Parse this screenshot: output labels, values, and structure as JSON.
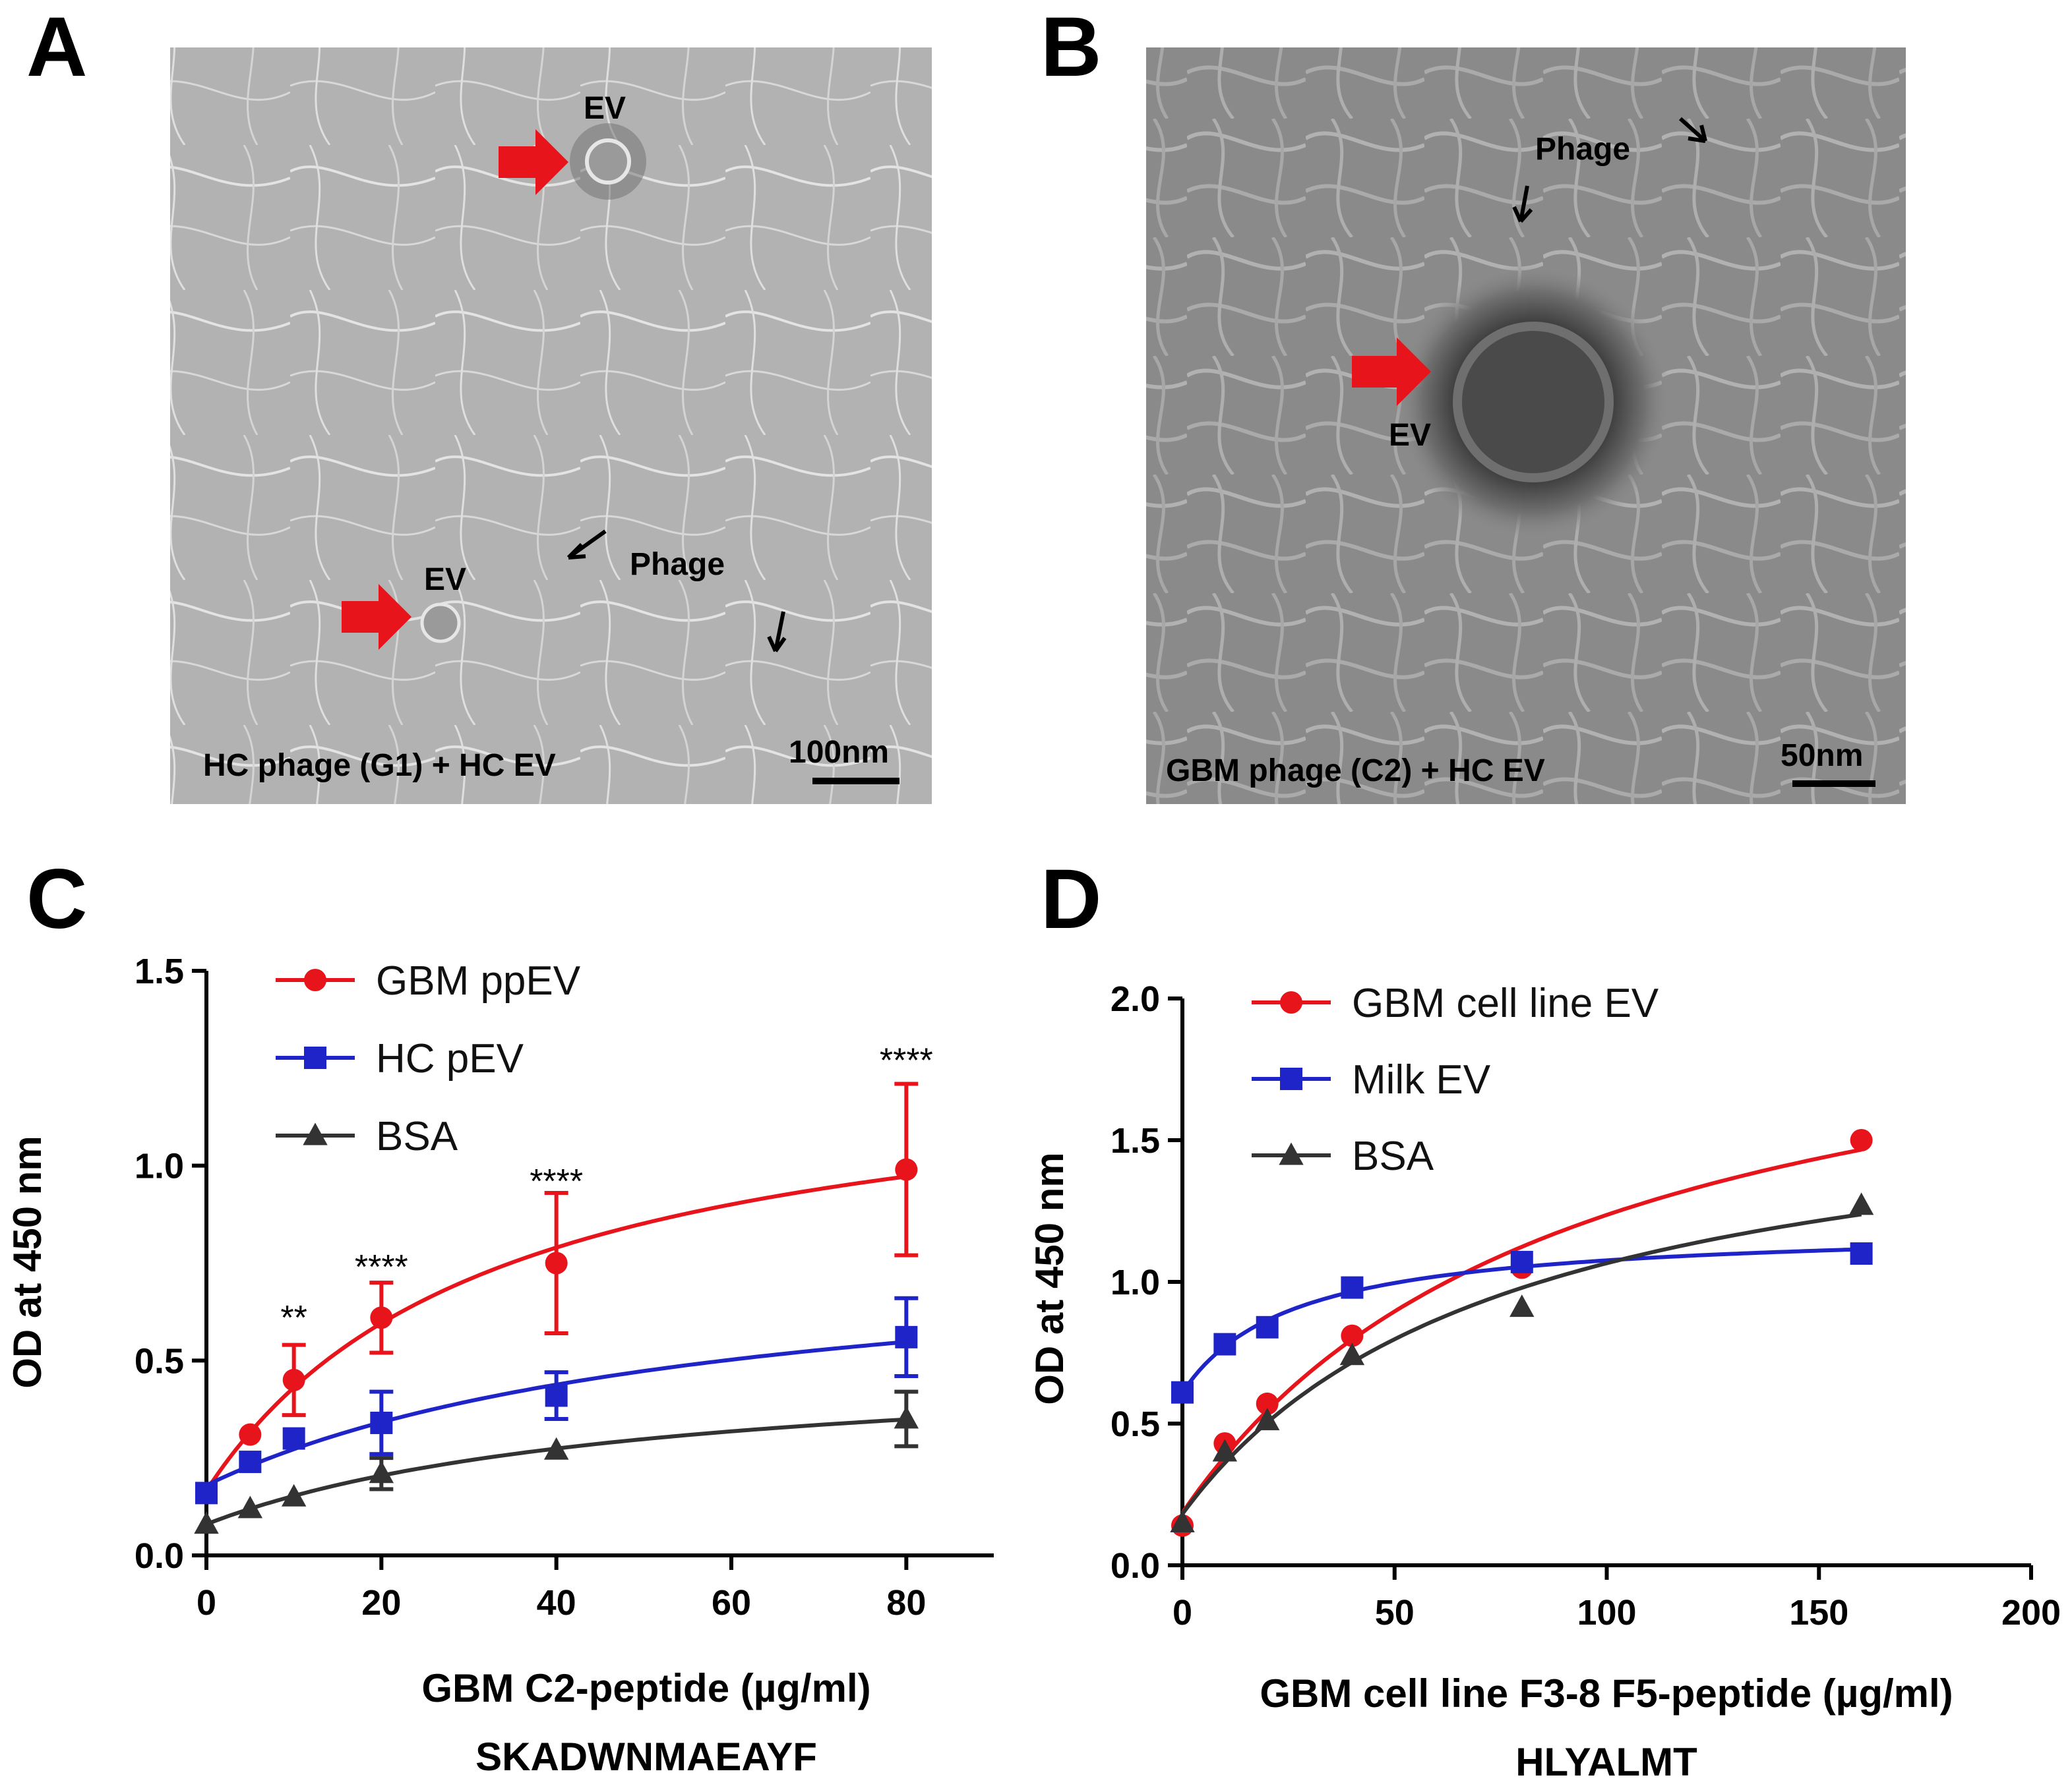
{
  "panels": {
    "A": {
      "letter": "A",
      "labels": {
        "ev_top": "EV",
        "ev_bottom": "EV",
        "phage": "Phage"
      },
      "caption": "HC phage (G1) + HC EV",
      "scalebar": "100nm"
    },
    "B": {
      "letter": "B",
      "labels": {
        "ev": "EV",
        "phage": "Phage"
      },
      "caption": "GBM phage (C2) + HC EV",
      "scalebar": "50nm"
    },
    "C": {
      "letter": "C"
    },
    "D": {
      "letter": "D"
    }
  },
  "chart_data": [
    {
      "id": "C",
      "type": "line",
      "xlabel": "GBM C2-peptide (µg/ml)",
      "xlabel2": "SKADWNMAEAYF",
      "ylabel": "OD at 450 nm",
      "xlim": [
        0,
        90
      ],
      "ylim": [
        0,
        1.5
      ],
      "xticks": [
        0,
        20,
        40,
        60,
        80
      ],
      "yticks": [
        0.0,
        0.5,
        1.0,
        1.5
      ],
      "xtick_labels": [
        "0",
        "20",
        "40",
        "60",
        "80"
      ],
      "ytick_labels": [
        "0.0",
        "0.5",
        "1.0",
        "1.5"
      ],
      "legend_position": "top-left",
      "series": [
        {
          "name": "GBM ppEV",
          "color": "#e8141b",
          "marker": "circle",
          "x": [
            0,
            5,
            10,
            20,
            40,
            80
          ],
          "y": [
            0.16,
            0.31,
            0.45,
            0.61,
            0.75,
            0.99
          ],
          "err": [
            0,
            0,
            0.09,
            0.09,
            0.18,
            0.22
          ]
        },
        {
          "name": "HC pEV",
          "color": "#1f24c8",
          "marker": "square",
          "x": [
            0,
            5,
            10,
            20,
            40,
            80
          ],
          "y": [
            0.16,
            0.24,
            0.3,
            0.34,
            0.41,
            0.56
          ],
          "err": [
            0,
            0,
            0,
            0.08,
            0.06,
            0.1
          ]
        },
        {
          "name": "BSA",
          "color": "#333333",
          "marker": "triangle",
          "x": [
            0,
            5,
            10,
            20,
            40,
            80
          ],
          "y": [
            0.08,
            0.12,
            0.15,
            0.21,
            0.27,
            0.35
          ],
          "err": [
            0,
            0,
            0,
            0.04,
            0,
            0.07
          ]
        }
      ],
      "annotations": [
        {
          "x": 10,
          "y": 0.58,
          "text": "**"
        },
        {
          "x": 20,
          "y": 0.71,
          "text": "****"
        },
        {
          "x": 40,
          "y": 0.93,
          "text": "****"
        },
        {
          "x": 80,
          "y": 1.24,
          "text": "****"
        }
      ]
    },
    {
      "id": "D",
      "type": "line",
      "xlabel": "GBM cell line F3-8 F5-peptide (µg/ml)",
      "xlabel2": "HLYALMT",
      "ylabel": "OD at 450 nm",
      "xlim": [
        0,
        200
      ],
      "ylim": [
        0,
        2.0
      ],
      "xticks": [
        0,
        50,
        100,
        150,
        200
      ],
      "yticks": [
        0.0,
        0.5,
        1.0,
        1.5,
        2.0
      ],
      "xtick_labels": [
        "0",
        "50",
        "100",
        "150",
        "200"
      ],
      "ytick_labels": [
        "0.0",
        "0.5",
        "1.0",
        "1.5",
        "2.0"
      ],
      "legend_position": "top-left",
      "series": [
        {
          "name": "GBM cell line EV",
          "color": "#e8141b",
          "marker": "circle",
          "x": [
            0,
            10,
            20,
            40,
            80,
            160
          ],
          "y": [
            0.14,
            0.43,
            0.57,
            0.81,
            1.05,
            1.5
          ]
        },
        {
          "name": "Milk EV",
          "color": "#1f24c8",
          "marker": "square",
          "x": [
            0,
            10,
            20,
            40,
            80,
            160
          ],
          "y": [
            0.61,
            0.78,
            0.84,
            0.98,
            1.07,
            1.1
          ]
        },
        {
          "name": "BSA",
          "color": "#333333",
          "marker": "triangle",
          "x": [
            0,
            10,
            20,
            40,
            80,
            160
          ],
          "y": [
            0.15,
            0.4,
            0.51,
            0.74,
            0.91,
            1.27
          ]
        }
      ]
    }
  ]
}
